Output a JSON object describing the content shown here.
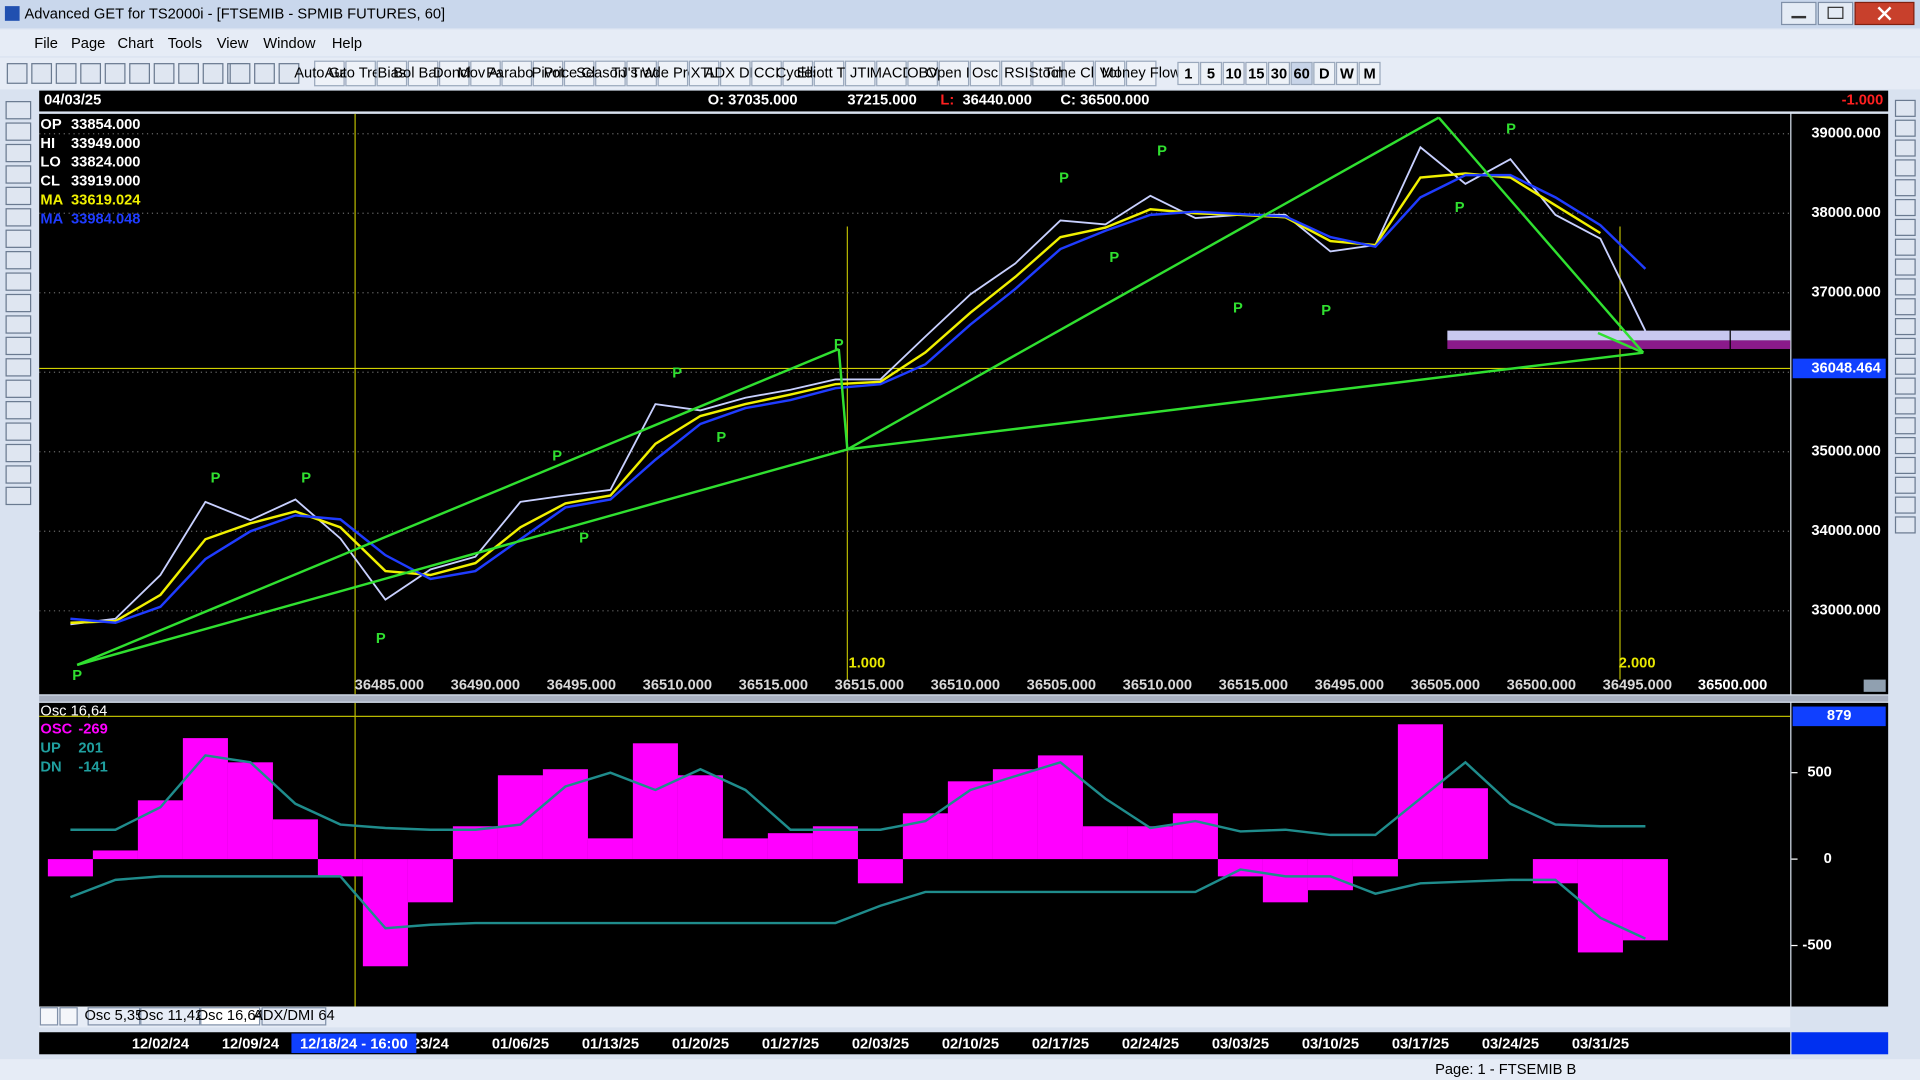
{
  "window": {
    "title": "Advanced GET for TS2000i - [FTSEMIB - SPMIB FUTURES, 60]"
  },
  "menu": [
    "File",
    "Page",
    "Chart",
    "Tools",
    "View",
    "Window",
    "Help"
  ],
  "toolbar": [
    "Auto Gann",
    "Auto Trend",
    "Bias",
    "Bol Band",
    "Donch",
    "Mov Ave",
    "Parabolic",
    "Pivot",
    "Price Clust",
    "Seasonals",
    "TJ's Web",
    "Trade Profile",
    "XTL",
    "ADX DMI",
    "CCI",
    "Cycles",
    "Elliott Trig",
    "JTI",
    "MACD",
    "OBV",
    "Open Int",
    "Osc",
    "RSI",
    "Stoch",
    "Time Clust",
    "Vol",
    "Money Flow"
  ],
  "periods": [
    "1",
    "5",
    "10",
    "15",
    "30",
    "60",
    "D",
    "W",
    "M"
  ],
  "header": {
    "date": "04/03/25",
    "open": "O: 37035.000",
    "high": "37215.000",
    "low_label": "L:",
    "low": "36440.000",
    "close": "C: 36500.000",
    "change": "-1.000"
  },
  "info": [
    {
      "label": "OP",
      "value": "33854.000"
    },
    {
      "label": "HI",
      "value": "33949.000"
    },
    {
      "label": "LO",
      "value": "33824.000"
    },
    {
      "label": "CL",
      "value": "33919.000"
    },
    {
      "label": "MA",
      "value": "33619.024"
    },
    {
      "label": "MA",
      "value": "33984.048"
    }
  ],
  "pivot_labels": [
    "P",
    "P",
    "P",
    "P",
    "P",
    "P",
    "P",
    "P",
    "P",
    "P",
    "P",
    "P",
    "P",
    "P",
    "P",
    "P"
  ],
  "bottom_labels": [
    "36485.000",
    "36490.000",
    "36495.000",
    "36510.000",
    "36515.000",
    "36515.000",
    "36510.000",
    "36505.000",
    "36510.000",
    "36515.000",
    "36495.000",
    "36505.000",
    "36500.000",
    "36495.000"
  ],
  "last_label": "36500.000",
  "ratio_labels": [
    "1.000",
    "2.000"
  ],
  "tabs": [
    "Osc 5,35",
    "Osc 11,42",
    "Osc 16,64",
    "ADX/DMI 64"
  ],
  "status": "Page: 1 - FTSEMIB B",
  "chart_data": [
    {
      "type": "line",
      "categories": [
        null,
        null,
        "12/02/24",
        null,
        "12/09/24",
        null,
        null,
        null,
        "23/24",
        null,
        "01/06/25",
        null,
        "01/13/25",
        null,
        "01/20/25",
        null,
        "01/27/25",
        null,
        "02/03/25",
        null,
        "02/10/25",
        null,
        "02/17/25",
        null,
        "02/24/25",
        null,
        "03/03/25",
        null,
        "03/10/25",
        null,
        "03/17/25",
        null,
        "03/24/25",
        null,
        "03/31/25",
        null
      ],
      "cursor_label": "12/18/24 - 16:00",
      "series": [
        {
          "color": "#c8d0ff",
          "values": [
            32830,
            32900,
            33450,
            34370,
            34140,
            34400,
            33910,
            33140,
            33520,
            33680,
            34370,
            34450,
            34520,
            35600,
            35520,
            35680,
            35780,
            35910,
            35910,
            36450,
            36980,
            37370,
            37910,
            37860,
            38220,
            37940,
            37980,
            37980,
            37520,
            37600,
            38830,
            38370,
            38680,
            37980,
            37680,
            36520
          ]
        },
        {
          "color": "#f0f000",
          "values": [
            32850,
            32870,
            33200,
            33900,
            34100,
            34250,
            34050,
            33500,
            33450,
            33600,
            34050,
            34350,
            34450,
            35100,
            35450,
            35600,
            35720,
            35850,
            35880,
            36250,
            36750,
            37200,
            37700,
            37820,
            38050,
            38000,
            37980,
            37950,
            37650,
            37600,
            38450,
            38500,
            38450,
            38100,
            37750,
            null
          ]
        },
        {
          "color": "#1f3cff",
          "values": [
            32900,
            32850,
            33050,
            33650,
            34000,
            34200,
            34150,
            33700,
            33400,
            33500,
            33900,
            34300,
            34400,
            34900,
            35350,
            35550,
            35650,
            35800,
            35850,
            36100,
            36600,
            37050,
            37550,
            37780,
            37980,
            38020,
            37990,
            37960,
            37700,
            37580,
            38200,
            38480,
            38480,
            38200,
            37850,
            37300
          ]
        }
      ],
      "ylim": [
        31950,
        39250
      ],
      "yticks": [
        {
          "value": 33000,
          "label": "33000.000"
        },
        {
          "value": 34000,
          "label": "34000.000"
        },
        {
          "value": 35000,
          "label": "35000.000"
        },
        {
          "value": 36000,
          "label": "36000.000"
        },
        {
          "value": 37000,
          "label": "37000.000"
        },
        {
          "value": 38000,
          "label": "38000.000"
        },
        {
          "value": 39000,
          "label": "39000.000"
        }
      ],
      "price_marker": {
        "value": 36048.464,
        "label": "36048.464"
      },
      "grid": true
    },
    {
      "type": "bar",
      "title": "Osc 16,64",
      "series": [
        {
          "name": "OSC",
          "legend_value": "-269",
          "color": "#ff00ff",
          "values": [
            -100,
            50,
            340,
            700,
            560,
            230,
            -100,
            -620,
            -250,
            190,
            485,
            520,
            120,
            670,
            485,
            120,
            150,
            190,
            -140,
            265,
            450,
            520,
            600,
            190,
            190,
            265,
            -100,
            -250,
            -180,
            -100,
            780,
            410,
            0,
            -140,
            -540,
            -470
          ]
        },
        {
          "name": "UP",
          "legend_value": "201",
          "type": "line",
          "color": "#1f8c8c",
          "values": [
            170,
            170,
            300,
            600,
            560,
            320,
            200,
            180,
            170,
            170,
            200,
            420,
            500,
            400,
            520,
            400,
            170,
            170,
            170,
            220,
            400,
            480,
            560,
            350,
            180,
            220,
            160,
            170,
            140,
            140,
            350,
            560,
            320,
            200,
            190,
            190
          ]
        },
        {
          "name": "DN",
          "legend_value": "-141",
          "type": "line",
          "color": "#1f8c8c",
          "values": [
            -220,
            -120,
            -100,
            -100,
            -100,
            -100,
            -100,
            -400,
            -380,
            -370,
            -370,
            -370,
            -370,
            -370,
            -370,
            -370,
            -370,
            -370,
            -270,
            -190,
            -190,
            -190,
            -190,
            -190,
            -190,
            -190,
            -60,
            -100,
            -100,
            -200,
            -140,
            -130,
            -120,
            -120,
            -340,
            -460
          ]
        }
      ],
      "last_value": "879",
      "ylim": [
        -853,
        904
      ],
      "yticks": [
        -500,
        0,
        500
      ],
      "grid": false
    }
  ]
}
